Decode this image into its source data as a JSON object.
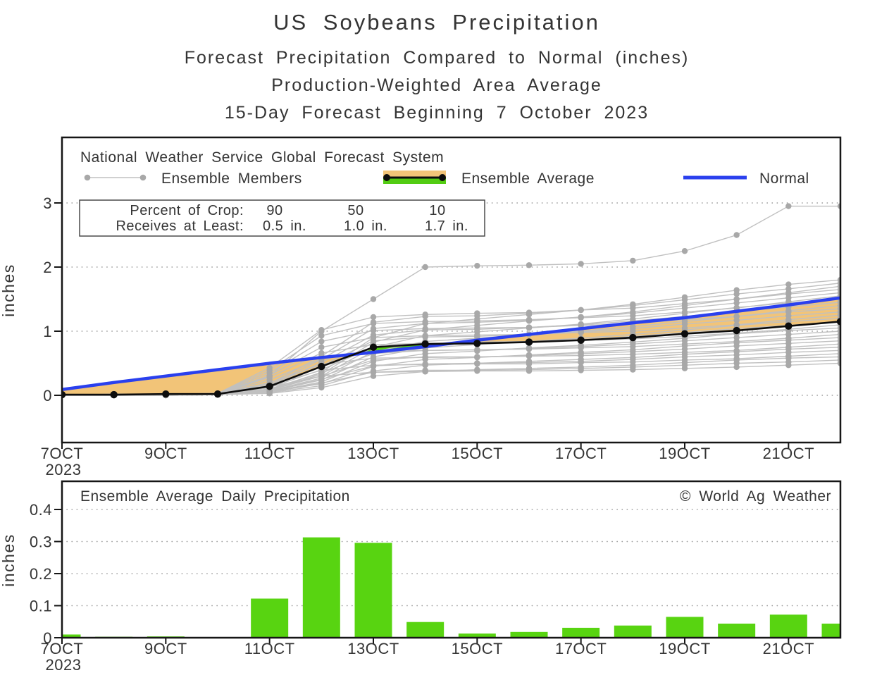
{
  "titles": {
    "line1": "US Soybeans Precipitation",
    "line2": "Forecast Precipitation Compared to Normal (inches)",
    "line3": "Production-Weighted Area Average",
    "line4": "15-Day Forecast Beginning 7 October 2023"
  },
  "colors": {
    "normal_blue": "#2a40ee",
    "average_black": "#0d0d0d",
    "member_gray_line": "#c0c0c0",
    "member_gray_dot": "#a8a8a8",
    "deficit_orange": "#f2c478",
    "surplus_green": "#52cc12",
    "bar_green": "#58d411",
    "grid_gray": "#9e9e9e",
    "axis_black": "#161616"
  },
  "top_chart": {
    "header": "National Weather Service Global Forecast System",
    "legend": {
      "members": "Ensemble Members",
      "average": "Ensemble Average",
      "normal": "Normal"
    },
    "crop_box": {
      "row1_label": "Percent of Crop:",
      "row2_label": "Receives at Least:",
      "percents": [
        "90",
        "50",
        "10"
      ],
      "amounts": [
        "0.5 in.",
        "1.0 in.",
        "1.7 in."
      ]
    },
    "ylabel": "inches"
  },
  "bottom_chart": {
    "header": "Ensemble Average Daily Precipitation",
    "credit": "© World Ag Weather",
    "ylabel": "inches"
  },
  "chart_data": [
    {
      "type": "line",
      "title": "Forecast cumulative precipitation compared to normal",
      "ylabel": "inches",
      "ylim": [
        -0.75,
        4.0
      ],
      "x_range_days": [
        7,
        22
      ],
      "x_days": [
        7,
        8,
        9,
        10,
        11,
        12,
        13,
        14,
        15,
        16,
        17,
        18,
        19,
        20,
        21,
        22
      ],
      "x_ticks": [
        {
          "day": 7,
          "label": "7OCT",
          "year": "2023"
        },
        {
          "day": 9,
          "label": "9OCT"
        },
        {
          "day": 11,
          "label": "11OCT"
        },
        {
          "day": 13,
          "label": "13OCT"
        },
        {
          "day": 15,
          "label": "15OCT"
        },
        {
          "day": 17,
          "label": "17OCT"
        },
        {
          "day": 19,
          "label": "19OCT"
        },
        {
          "day": 21,
          "label": "21OCT"
        }
      ],
      "yticks": [
        {
          "value": 0,
          "label": "0"
        },
        {
          "value": 1,
          "label": "1"
        },
        {
          "value": 2,
          "label": "2"
        },
        {
          "value": 3,
          "label": "3"
        }
      ],
      "grid": "dotted",
      "series": [
        {
          "name": "Normal",
          "color": "#2a40ee",
          "values": [
            0.09,
            0.2,
            0.3,
            0.4,
            0.5,
            0.59,
            0.67,
            0.76,
            0.86,
            0.95,
            1.04,
            1.13,
            1.21,
            1.31,
            1.41,
            1.52
          ]
        },
        {
          "name": "Ensemble Average",
          "color": "#0d0d0d",
          "values": [
            0.01,
            0.01,
            0.02,
            0.02,
            0.14,
            0.45,
            0.75,
            0.8,
            0.81,
            0.83,
            0.86,
            0.9,
            0.96,
            1.01,
            1.08,
            1.15
          ]
        }
      ],
      "fills": {
        "below_normal": "#f2c478",
        "above_normal": "#52cc12"
      },
      "members": {
        "name": "Ensemble Members",
        "line_color": "#c0c0c0",
        "dot_color": "#a8a8a8",
        "lines": [
          [
            0,
            0.01,
            0.01,
            0.01,
            0.13,
            0.3,
            0.36,
            0.37,
            0.38,
            0.38,
            0.39,
            0.4,
            0.42,
            0.44,
            0.47,
            0.5
          ],
          [
            0,
            0,
            0.01,
            0.01,
            0.06,
            0.19,
            0.36,
            0.39,
            0.39,
            0.4,
            0.42,
            0.44,
            0.47,
            0.5,
            0.52,
            0.55
          ],
          [
            0,
            0,
            0,
            0.01,
            0.03,
            0.12,
            0.3,
            0.37,
            0.4,
            0.42,
            0.44,
            0.47,
            0.51,
            0.55,
            0.58,
            0.6
          ],
          [
            0,
            0.01,
            0.01,
            0.01,
            0.16,
            0.39,
            0.47,
            0.48,
            0.49,
            0.49,
            0.51,
            0.52,
            0.55,
            0.57,
            0.61,
            0.65
          ],
          [
            0,
            0,
            0.01,
            0.01,
            0.07,
            0.25,
            0.46,
            0.49,
            0.5,
            0.51,
            0.53,
            0.56,
            0.6,
            0.63,
            0.67,
            0.7
          ],
          [
            0,
            0,
            0,
            0.01,
            0.04,
            0.15,
            0.38,
            0.47,
            0.5,
            0.53,
            0.56,
            0.59,
            0.64,
            0.68,
            0.72,
            0.75
          ],
          [
            0,
            0.01,
            0.01,
            0.02,
            0.2,
            0.48,
            0.58,
            0.59,
            0.6,
            0.61,
            0.62,
            0.64,
            0.67,
            0.7,
            0.75,
            0.8
          ],
          [
            0,
            0,
            0.01,
            0.01,
            0.09,
            0.3,
            0.55,
            0.6,
            0.6,
            0.62,
            0.65,
            0.68,
            0.72,
            0.77,
            0.81,
            0.85
          ],
          [
            0,
            0,
            0,
            0.01,
            0.05,
            0.18,
            0.45,
            0.56,
            0.59,
            0.63,
            0.67,
            0.71,
            0.77,
            0.82,
            0.86,
            0.9
          ],
          [
            0,
            0.01,
            0.01,
            0.02,
            0.24,
            0.57,
            0.68,
            0.7,
            0.71,
            0.72,
            0.74,
            0.76,
            0.8,
            0.84,
            0.89,
            0.95
          ],
          [
            0,
            0,
            0.01,
            0.01,
            0.1,
            0.35,
            0.65,
            0.7,
            0.71,
            0.73,
            0.76,
            0.8,
            0.85,
            0.9,
            0.95,
            1.0
          ],
          [
            0,
            0,
            0,
            0.01,
            0.05,
            0.21,
            0.53,
            0.65,
            0.69,
            0.74,
            0.78,
            0.83,
            0.89,
            0.96,
            1.01,
            1.05
          ],
          [
            0,
            0.01,
            0.01,
            0.02,
            0.28,
            0.66,
            0.79,
            0.81,
            0.83,
            0.84,
            0.86,
            0.88,
            0.92,
            0.97,
            1.03,
            1.1
          ],
          [
            0,
            0,
            0.01,
            0.01,
            0.12,
            0.4,
            0.75,
            0.81,
            0.82,
            0.84,
            0.87,
            0.92,
            0.98,
            1.04,
            1.09,
            1.15
          ],
          [
            0,
            0,
            0,
            0.01,
            0.06,
            0.24,
            0.6,
            0.74,
            0.79,
            0.84,
            0.89,
            0.95,
            1.02,
            1.09,
            1.15,
            1.2
          ],
          [
            0,
            0.01,
            0.01,
            0.03,
            0.31,
            0.75,
            0.9,
            0.93,
            0.94,
            0.95,
            0.98,
            1.0,
            1.05,
            1.1,
            1.18,
            1.25
          ],
          [
            0,
            0,
            0.01,
            0.01,
            0.13,
            0.46,
            0.85,
            0.91,
            0.92,
            0.95,
            0.99,
            1.04,
            1.11,
            1.17,
            1.24,
            1.3
          ],
          [
            0,
            0,
            0,
            0.01,
            0.07,
            0.27,
            0.68,
            0.84,
            0.89,
            0.95,
            1.0,
            1.07,
            1.15,
            1.23,
            1.3,
            1.35
          ],
          [
            0,
            0.01,
            0.01,
            0.03,
            0.35,
            0.84,
            1.01,
            1.04,
            1.05,
            1.06,
            1.09,
            1.12,
            1.18,
            1.23,
            1.32,
            1.4
          ],
          [
            0,
            0,
            0.01,
            0.01,
            0.15,
            0.51,
            0.94,
            1.02,
            1.03,
            1.06,
            1.1,
            1.16,
            1.23,
            1.31,
            1.38,
            1.45
          ],
          [
            0,
            0,
            0,
            0.02,
            0.08,
            0.3,
            0.75,
            0.93,
            0.99,
            1.05,
            1.11,
            1.19,
            1.28,
            1.37,
            1.44,
            1.5
          ],
          [
            0,
            0.02,
            0.02,
            0.03,
            0.39,
            0.93,
            1.12,
            1.15,
            1.16,
            1.18,
            1.21,
            1.24,
            1.3,
            1.36,
            1.46,
            1.55
          ],
          [
            0,
            0,
            0.02,
            0.02,
            0.16,
            0.56,
            1.04,
            1.12,
            1.14,
            1.17,
            1.22,
            1.28,
            1.36,
            1.44,
            1.52,
            1.6
          ],
          [
            0,
            0,
            0,
            0.02,
            0.08,
            0.33,
            0.83,
            1.02,
            1.09,
            1.16,
            1.22,
            1.3,
            1.4,
            1.5,
            1.58,
            1.65
          ],
          [
            0,
            0.02,
            0.02,
            0.03,
            0.43,
            1.02,
            1.22,
            1.26,
            1.28,
            1.29,
            1.33,
            1.36,
            1.43,
            1.5,
            1.6,
            1.7
          ],
          [
            0,
            0,
            0.02,
            0.02,
            0.18,
            0.61,
            1.14,
            1.23,
            1.24,
            1.28,
            1.33,
            1.4,
            1.49,
            1.58,
            1.66,
            1.75
          ],
          [
            0,
            0,
            0,
            0.02,
            0.09,
            0.36,
            0.9,
            1.12,
            1.19,
            1.26,
            1.33,
            1.42,
            1.53,
            1.64,
            1.73,
            1.8
          ],
          [
            0,
            0.01,
            0.01,
            0.02,
            0.3,
            1.0,
            1.5,
            2.0,
            2.02,
            2.03,
            2.05,
            2.1,
            2.25,
            2.5,
            2.95,
            2.95
          ]
        ]
      }
    },
    {
      "type": "bar",
      "title": "Ensemble Average Daily Precipitation",
      "ylabel": "inches",
      "ylim": [
        0,
        0.48
      ],
      "bar_color": "#58d411",
      "x_days": [
        7,
        8,
        9,
        10,
        11,
        12,
        13,
        14,
        15,
        16,
        17,
        18,
        19,
        20,
        21,
        22
      ],
      "values": [
        0.01,
        0.003,
        0.004,
        0.002,
        0.122,
        0.313,
        0.296,
        0.049,
        0.013,
        0.018,
        0.031,
        0.038,
        0.065,
        0.044,
        0.072,
        0.044
      ],
      "x_ticks": [
        {
          "day": 7,
          "label": "7OCT",
          "year": "2023"
        },
        {
          "day": 9,
          "label": "9OCT"
        },
        {
          "day": 11,
          "label": "11OCT"
        },
        {
          "day": 13,
          "label": "13OCT"
        },
        {
          "day": 15,
          "label": "15OCT"
        },
        {
          "day": 17,
          "label": "17OCT"
        },
        {
          "day": 19,
          "label": "19OCT"
        },
        {
          "day": 21,
          "label": "21OCT"
        }
      ],
      "yticks": [
        {
          "value": 0,
          "label": "0"
        },
        {
          "value": 0.1,
          "label": "0.1"
        },
        {
          "value": 0.2,
          "label": "0.2"
        },
        {
          "value": 0.3,
          "label": "0.3"
        },
        {
          "value": 0.4,
          "label": "0.4"
        }
      ],
      "grid": "dotted"
    }
  ]
}
